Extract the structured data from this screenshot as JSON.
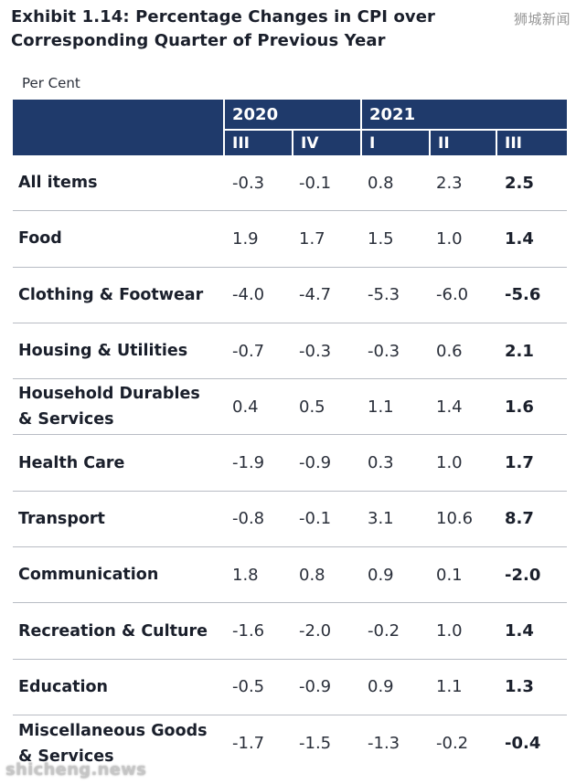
{
  "title": "Exhibit 1.14: Percentage Changes in CPI over Corresponding Quarter of Previous Year",
  "unit": "Per Cent",
  "watermark_top": "狮城新闻",
  "watermark_bottom": "shicheng.news",
  "colors": {
    "header_bg": "#1f3a6b",
    "header_text": "#ffffff",
    "text": "#1a1f2b",
    "row_rule": "#b8bcc4"
  },
  "table": {
    "years": [
      "2020",
      "2021"
    ],
    "quarters": [
      "III",
      "IV",
      "I",
      "II",
      "III"
    ],
    "rows": [
      {
        "label": "All items",
        "values": [
          "-0.3",
          "-0.1",
          "0.8",
          "2.3",
          "2.5"
        ]
      },
      {
        "label": "Food",
        "values": [
          "1.9",
          "1.7",
          "1.5",
          "1.0",
          "1.4"
        ]
      },
      {
        "label": "Clothing & Footwear",
        "values": [
          "-4.0",
          "-4.7",
          "-5.3",
          "-6.0",
          "-5.6"
        ]
      },
      {
        "label": "Housing & Utilities",
        "values": [
          "-0.7",
          "-0.3",
          "-0.3",
          "0.6",
          "2.1"
        ]
      },
      {
        "label": "Household Durables & Services",
        "values": [
          "0.4",
          "0.5",
          "1.1",
          "1.4",
          "1.6"
        ]
      },
      {
        "label": "Health Care",
        "values": [
          "-1.9",
          "-0.9",
          "0.3",
          "1.0",
          "1.7"
        ]
      },
      {
        "label": "Transport",
        "values": [
          "-0.8",
          "-0.1",
          "3.1",
          "10.6",
          "8.7"
        ]
      },
      {
        "label": "Communication",
        "values": [
          "1.8",
          "0.8",
          "0.9",
          "0.1",
          "-2.0"
        ]
      },
      {
        "label": "Recreation & Culture",
        "values": [
          "-1.6",
          "-2.0",
          "-0.2",
          "1.0",
          "1.4"
        ]
      },
      {
        "label": "Education",
        "values": [
          "-0.5",
          "-0.9",
          "0.9",
          "1.1",
          "1.3"
        ]
      },
      {
        "label": "Miscellaneous Goods & Services",
        "values": [
          "-1.7",
          "-1.5",
          "-1.3",
          "-0.2",
          "-0.4"
        ]
      }
    ]
  }
}
